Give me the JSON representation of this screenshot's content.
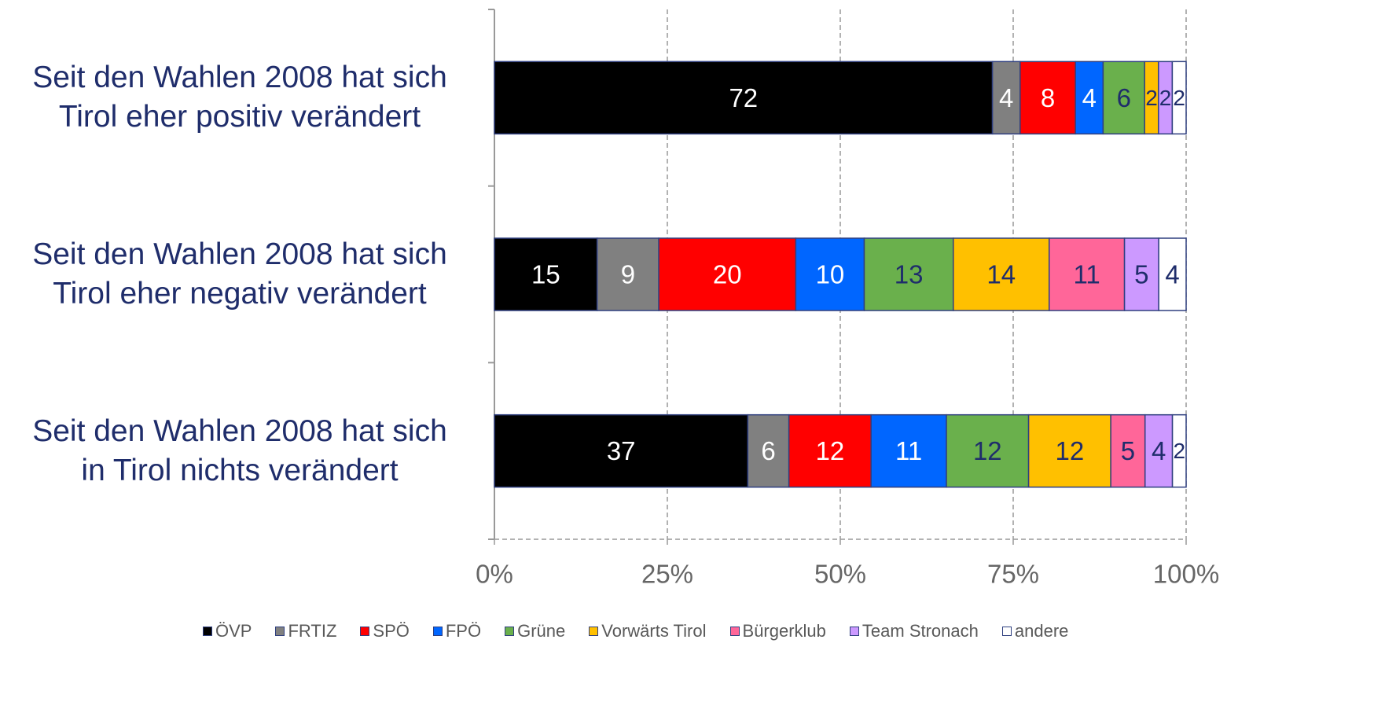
{
  "chart_data": {
    "type": "percent-stacked-bar",
    "categories": [
      "Seit den Wahlen 2008 hat sich\nTirol eher positiv verändert",
      "Seit den Wahlen 2008 hat sich\nTirol eher negativ verändert",
      "Seit den Wahlen 2008 hat sich\nin Tirol nichts verändert"
    ],
    "series": [
      {
        "name": "ÖVP",
        "color": "#000000",
        "label_color": "#ffffff",
        "values": [
          72,
          15,
          37
        ]
      },
      {
        "name": "FRTIZ",
        "color": "#808080",
        "label_color": "#ffffff",
        "values": [
          4,
          9,
          6
        ]
      },
      {
        "name": "SPÖ",
        "color": "#ff0000",
        "label_color": "#ffffff",
        "values": [
          8,
          20,
          12
        ]
      },
      {
        "name": "FPÖ",
        "color": "#0066ff",
        "label_color": "#ffffff",
        "values": [
          4,
          10,
          11
        ]
      },
      {
        "name": "Grüne",
        "color": "#6ab04c",
        "label_color": "#1f2d6b",
        "values": [
          6,
          13,
          12
        ]
      },
      {
        "name": "Vorwärts Tirol",
        "color": "#ffc000",
        "label_color": "#1f2d6b",
        "values": [
          2,
          14,
          12
        ]
      },
      {
        "name": "Bürgerklub",
        "color": "#ff6699",
        "label_color": "#1f2d6b",
        "values": [
          null,
          11,
          5
        ]
      },
      {
        "name": "Team Stronach",
        "color": "#cc99ff",
        "label_color": "#1f2d6b",
        "values": [
          2,
          5,
          4
        ]
      },
      {
        "name": "andere",
        "color": "#ffffff",
        "label_color": "#1f2d6b",
        "values": [
          2,
          4,
          2
        ]
      }
    ],
    "xlim": [
      0,
      100
    ],
    "xticks": [
      {
        "value": 0,
        "label": "0%"
      },
      {
        "value": 25,
        "label": "25%"
      },
      {
        "value": 50,
        "label": "50%"
      },
      {
        "value": 75,
        "label": "75%"
      },
      {
        "value": 100,
        "label": "100%"
      }
    ],
    "grid": true,
    "legend": "bottom"
  }
}
